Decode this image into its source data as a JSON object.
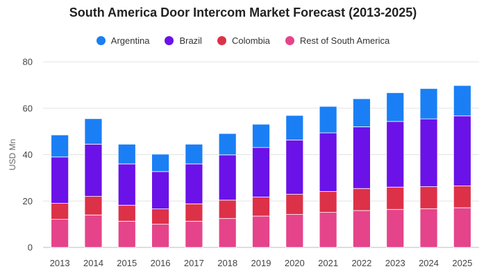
{
  "chart_data": {
    "type": "bar",
    "stacked": true,
    "title": "South America Door Intercom Market Forecast (2013-2025)",
    "xlabel": "",
    "ylabel": "USD Mn",
    "ylim": [
      0,
      80
    ],
    "yticks": [
      0,
      20,
      40,
      60,
      80
    ],
    "grid": true,
    "legend_position": "top-center",
    "categories": [
      "2013",
      "2014",
      "2015",
      "2016",
      "2017",
      "2018",
      "2019",
      "2020",
      "2021",
      "2022",
      "2023",
      "2024",
      "2025"
    ],
    "series": [
      {
        "name": "Rest of South America",
        "color": "#e5448a",
        "values": [
          12.1,
          14.0,
          11.3,
          10.0,
          11.3,
          12.5,
          13.5,
          14.2,
          15.1,
          15.9,
          16.4,
          16.7,
          17.1
        ]
      },
      {
        "name": "Colombia",
        "color": "#dd3148",
        "values": [
          6.9,
          8.0,
          6.9,
          6.6,
          7.5,
          7.9,
          8.2,
          8.7,
          9.0,
          9.5,
          9.6,
          9.5,
          9.4
        ]
      },
      {
        "name": "Brazil",
        "color": "#6a12e8",
        "values": [
          20.0,
          22.5,
          17.8,
          16.1,
          17.2,
          19.5,
          21.4,
          23.4,
          25.3,
          26.6,
          28.3,
          29.2,
          30.2
        ]
      },
      {
        "name": "Argentina",
        "color": "#1a7ff5",
        "values": [
          9.5,
          11.0,
          8.5,
          7.5,
          8.5,
          9.2,
          10.0,
          10.6,
          11.4,
          12.1,
          12.4,
          13.1,
          13.1
        ]
      }
    ]
  },
  "legend_order": [
    "Argentina",
    "Brazil",
    "Colombia",
    "Rest of South America"
  ]
}
